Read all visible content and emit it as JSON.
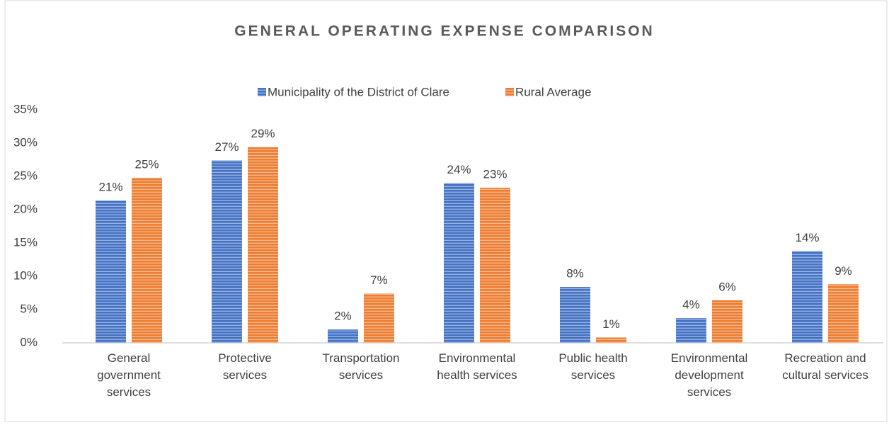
{
  "chart_data": {
    "type": "bar",
    "title": "GENERAL OPERATING EXPENSE COMPARISON",
    "categories": [
      "General government services",
      "Protective services",
      "Transportation services",
      "Environmental health services",
      "Public health services",
      "Environmental development services",
      "Recreation and cultural services"
    ],
    "series": [
      {
        "name": "Municipality of the District of Clare",
        "color": "#4472c4",
        "values": [
          21.4,
          27.4,
          2.0,
          24.0,
          8.4,
          3.7,
          13.8
        ],
        "value_labels": [
          "21%",
          "27%",
          "2%",
          "24%",
          "8%",
          "4%",
          "14%"
        ]
      },
      {
        "name": "Rural Average",
        "color": "#ed7d31",
        "values": [
          24.8,
          29.4,
          7.4,
          23.3,
          0.8,
          6.4,
          8.8
        ],
        "value_labels": [
          "25%",
          "29%",
          "7%",
          "23%",
          "1%",
          "6%",
          "9%"
        ]
      }
    ],
    "ylim": [
      0,
      35
    ],
    "yticks": [
      {
        "value": 0,
        "label": "0%"
      },
      {
        "value": 5,
        "label": "5%"
      },
      {
        "value": 10,
        "label": "10%"
      },
      {
        "value": 15,
        "label": "15%"
      },
      {
        "value": 20,
        "label": "20%"
      },
      {
        "value": 25,
        "label": "25%"
      },
      {
        "value": 30,
        "label": "30%"
      },
      {
        "value": 35,
        "label": "35%"
      }
    ],
    "grid": false,
    "legend": "top"
  }
}
